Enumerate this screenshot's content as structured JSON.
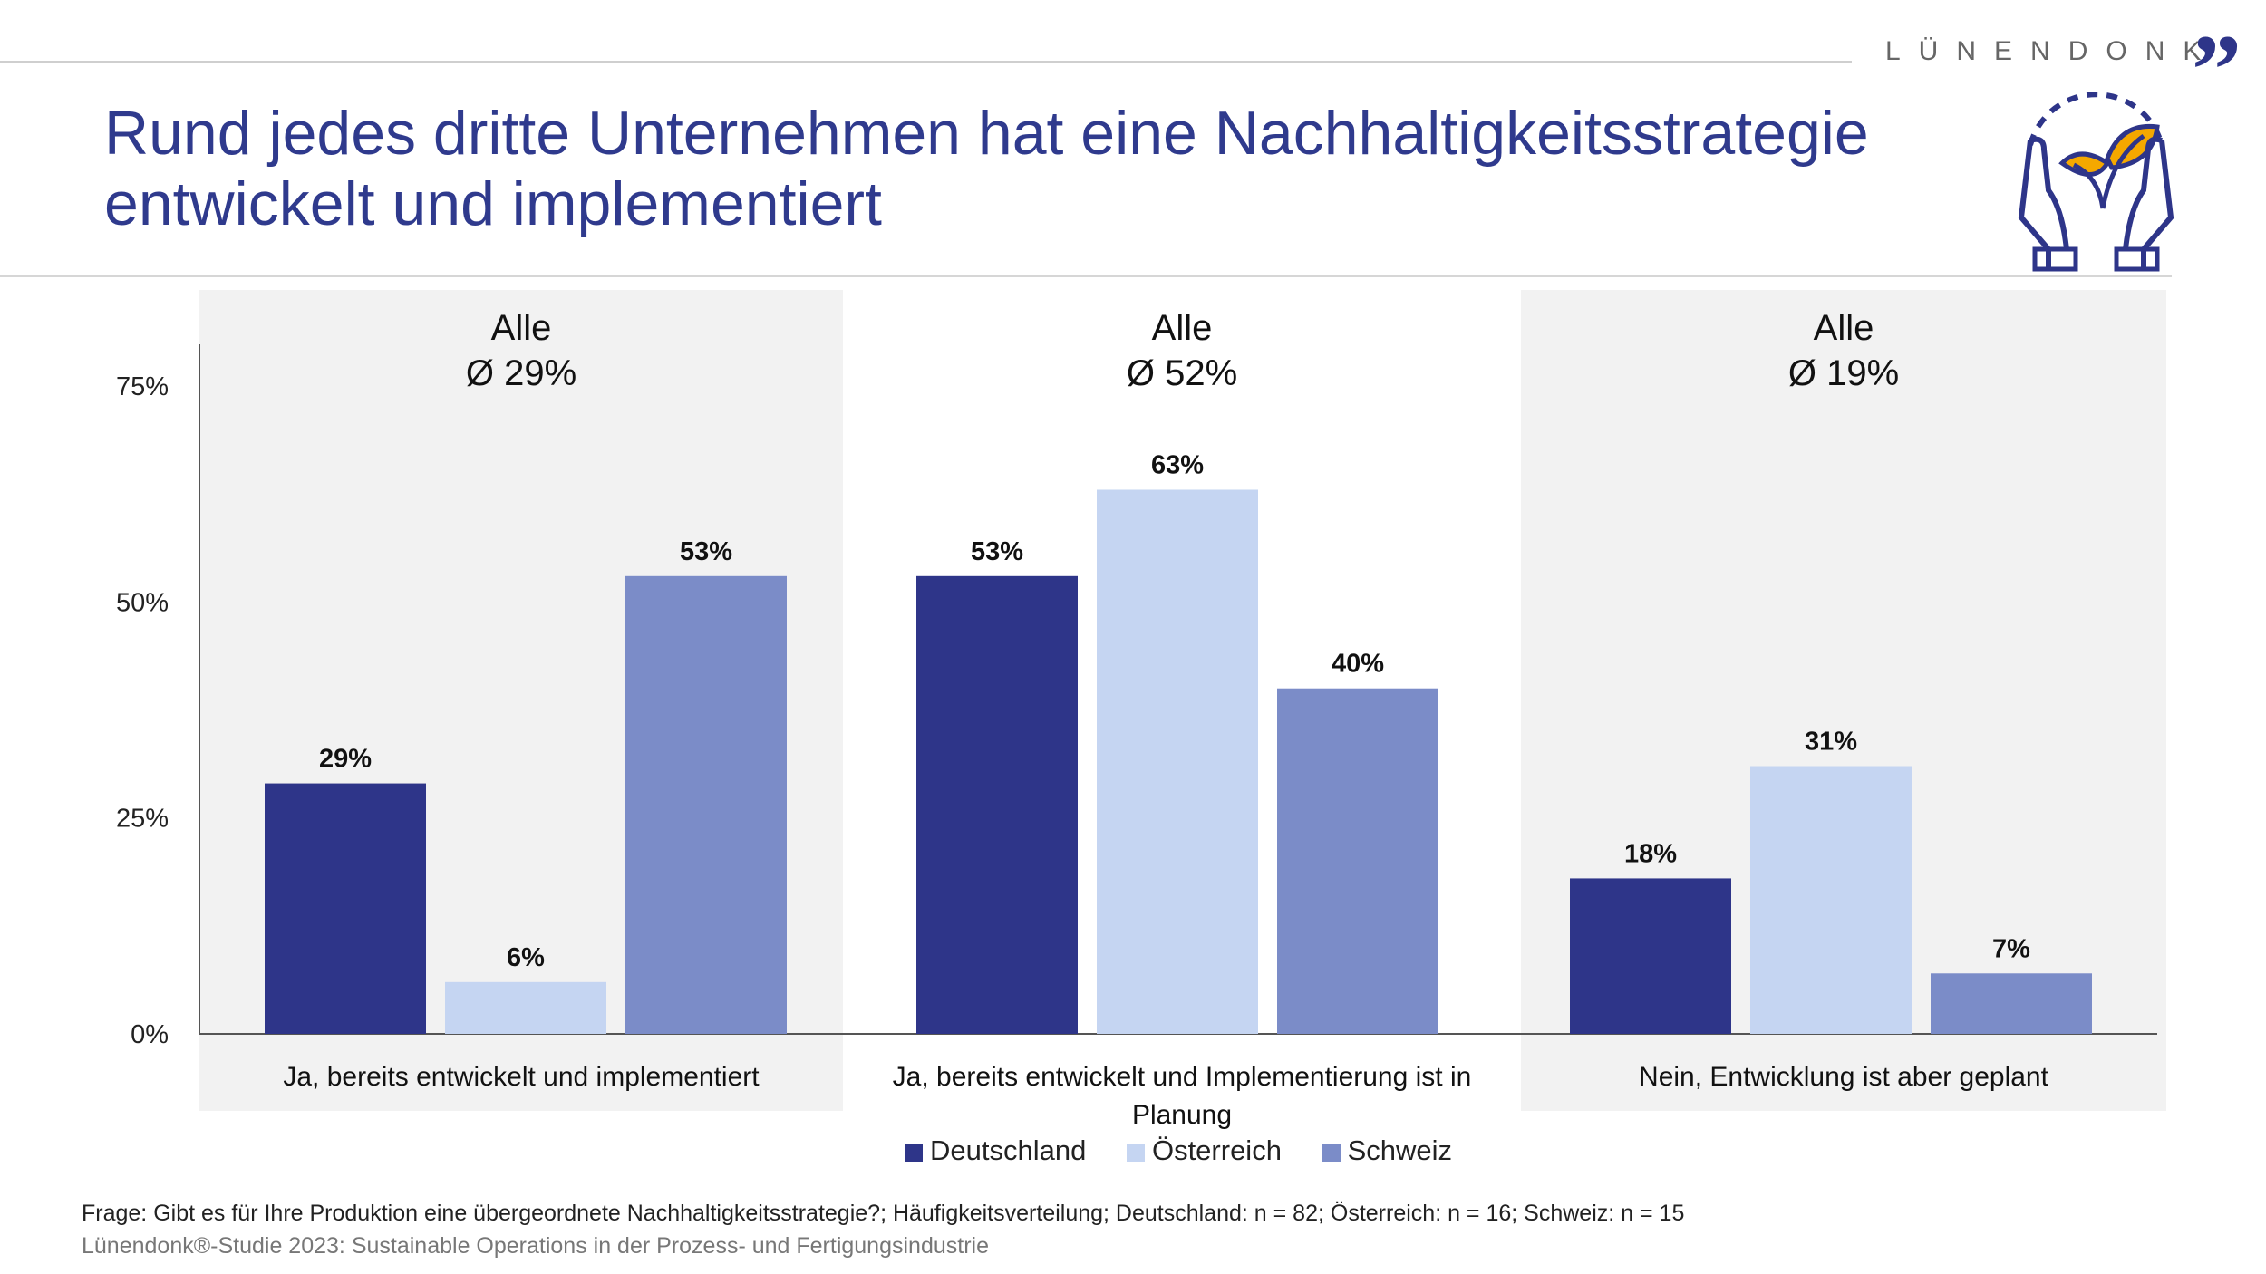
{
  "brand": {
    "name": "LÜNENDONK",
    "accent": "#2e3589",
    "leaf_color": "#f5a800"
  },
  "title": {
    "line1": "Rund jedes dritte Unternehmen hat eine Nachhaltigkeitsstrategie",
    "line2": "entwickelt und implementiert"
  },
  "chart_data": {
    "type": "bar",
    "categories": [
      "Ja, bereits entwickelt und implementiert",
      "Ja, bereits entwickelt und Implementierung ist in Planung",
      "Nein, Entwicklung ist aber geplant"
    ],
    "category_label_lines": [
      [
        "Ja, bereits entwickelt und implementiert"
      ],
      [
        "Ja, bereits entwickelt und Implementierung ist in",
        "Planung"
      ],
      [
        "Nein, Entwicklung ist aber geplant"
      ]
    ],
    "group_headers": [
      {
        "label": "Alle",
        "avg": "Ø 29%"
      },
      {
        "label": "Alle",
        "avg": "Ø 52%"
      },
      {
        "label": "Alle",
        "avg": "Ø 19%"
      }
    ],
    "series": [
      {
        "name": "Deutschland",
        "color": "#2e3589",
        "values": [
          29,
          53,
          18
        ]
      },
      {
        "name": "Österreich",
        "color": "#c5d5f2",
        "values": [
          6,
          63,
          31
        ]
      },
      {
        "name": "Schweiz",
        "color": "#7b8cc8",
        "values": [
          53,
          40,
          7
        ]
      }
    ],
    "y_ticks": [
      "0%",
      "25%",
      "50%",
      "75%"
    ],
    "y_tick_values": [
      0,
      25,
      50,
      75
    ],
    "ylim": [
      0,
      80
    ],
    "data_label_suffix": "%",
    "legend_position": "bottom",
    "grid": false,
    "panel_background": "#f2f2f2"
  },
  "footer": {
    "question": "Frage: Gibt es für Ihre Produktion eine übergeordnete Nachhaltigkeitsstrategie?; Häufigkeitsverteilung; Deutschland: n = 82; Österreich: n = 16; Schweiz: n = 15",
    "source": "Lünendonk®-Studie 2023: Sustainable Operations in der Prozess- und Fertigungsindustrie"
  }
}
